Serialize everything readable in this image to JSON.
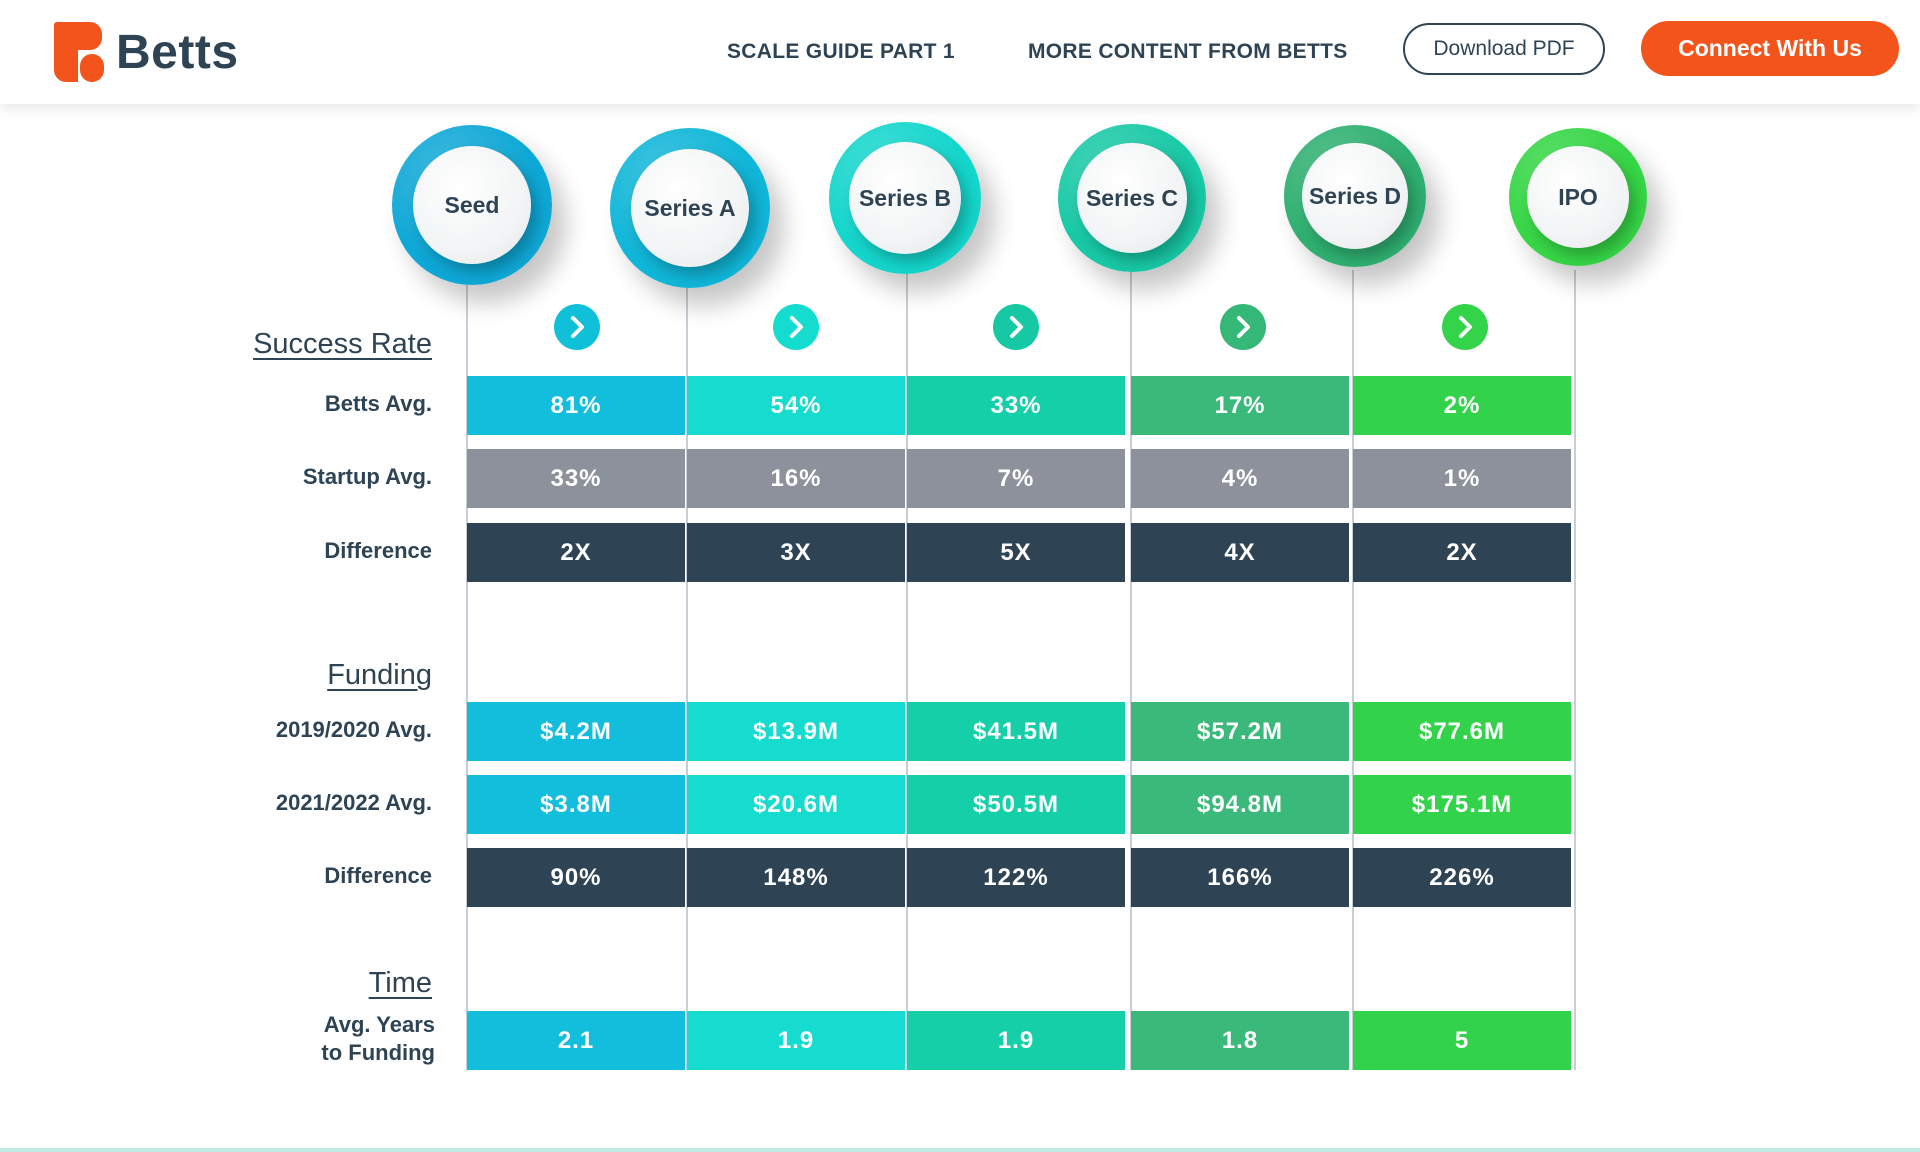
{
  "header": {
    "logo_text": "Betts",
    "nav": [
      "SCALE GUIDE PART 1",
      "MORE CONTENT FROM BETTS"
    ],
    "download_label": "Download PDF",
    "connect_label": "Connect With Us",
    "brand_color": "#f2541b"
  },
  "stages": [
    {
      "name": "Seed",
      "ring_color": "#0ea8d6"
    },
    {
      "name": "Series A",
      "ring_color": "#10b6d8"
    },
    {
      "name": "Series B",
      "ring_color": "#14d6cc"
    },
    {
      "name": "Series C",
      "ring_color": "#18c9a6"
    },
    {
      "name": "Series D",
      "ring_color": "#2fb071"
    },
    {
      "name": "IPO",
      "ring_color": "#36d646"
    }
  ],
  "arrow_colors": [
    "#10c0d9",
    "#14dccf",
    "#16c9a4",
    "#35b778",
    "#33d34a"
  ],
  "sections": {
    "success_rate": {
      "title": "Success Rate",
      "rows": [
        {
          "label": "Betts Avg.",
          "type": "color",
          "values": [
            "81%",
            "54%",
            "33%",
            "17%",
            "2%"
          ]
        },
        {
          "label": "Startup Avg.",
          "type": "gray",
          "values": [
            "33%",
            "16%",
            "7%",
            "4%",
            "1%"
          ]
        },
        {
          "label": "Difference",
          "type": "dark",
          "values": [
            "2X",
            "3X",
            "5X",
            "4X",
            "2X"
          ]
        }
      ]
    },
    "funding": {
      "title": "Funding",
      "rows": [
        {
          "label": "2019/2020 Avg.",
          "type": "color",
          "values": [
            "$4.2M",
            "$13.9M",
            "$41.5M",
            "$57.2M",
            "$77.6M"
          ]
        },
        {
          "label": "2021/2022 Avg.",
          "type": "color",
          "values": [
            "$3.8M",
            "$20.6M",
            "$50.5M",
            "$94.8M",
            "$175.1M"
          ]
        },
        {
          "label": "Difference",
          "type": "dark",
          "values": [
            "90%",
            "148%",
            "122%",
            "166%",
            "226%"
          ]
        }
      ]
    },
    "time": {
      "title": "Time",
      "rows": [
        {
          "label_lines": [
            "Avg. Years",
            "to Funding"
          ],
          "type": "color",
          "values": [
            "2.1",
            "1.9",
            "1.9",
            "1.8",
            "5"
          ]
        }
      ]
    }
  },
  "column_colors": [
    "#12bedb",
    "#15dccf",
    "#14cfa8",
    "#3ab97a",
    "#32d34a"
  ],
  "gray_color": "#8d919c",
  "dark_color": "#2e4455"
}
